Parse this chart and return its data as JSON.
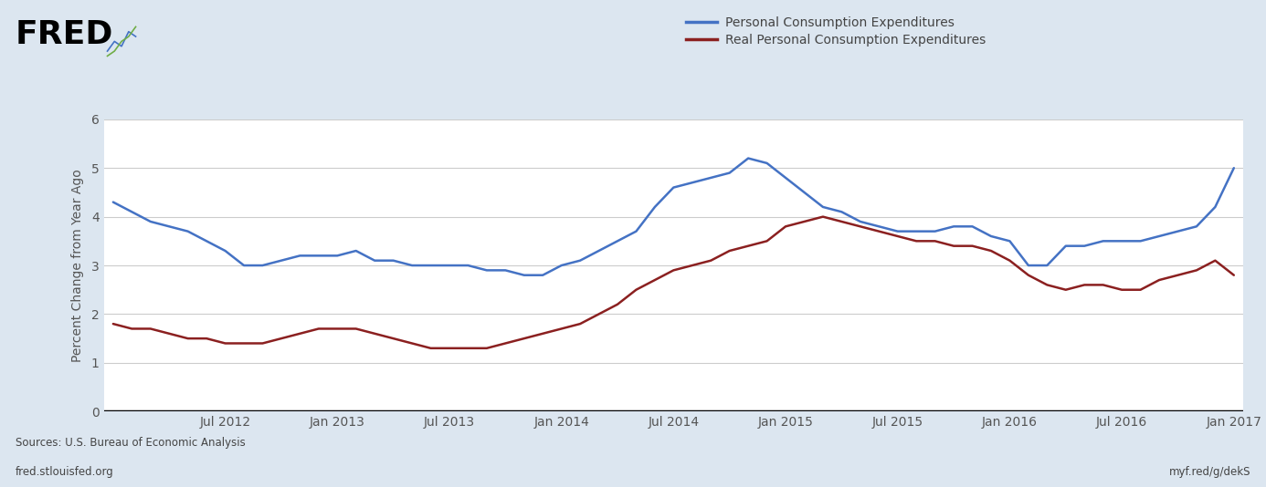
{
  "background_color": "#dce6f0",
  "plot_bg_color": "#ffffff",
  "blue_color": "#4472c4",
  "red_color": "#8b2020",
  "ylabel": "Percent Change from Year Ago",
  "legend1": "Personal Consumption Expenditures",
  "legend2": "Real Personal Consumption Expenditures",
  "source_text": "Sources: U.S. Bureau of Economic Analysis",
  "url_text": "fred.stlouisfed.org",
  "url_right": "myf.red/g/dekS",
  "ylim": [
    0,
    6
  ],
  "yticks": [
    0,
    1,
    2,
    3,
    4,
    5,
    6
  ],
  "pce": [
    4.3,
    4.1,
    3.9,
    3.8,
    3.7,
    3.5,
    3.3,
    3.0,
    3.0,
    3.1,
    3.2,
    3.2,
    3.2,
    3.3,
    3.1,
    3.1,
    3.0,
    3.0,
    3.0,
    3.0,
    2.9,
    2.9,
    2.8,
    2.8,
    3.0,
    3.1,
    3.3,
    3.5,
    3.7,
    4.2,
    4.6,
    4.7,
    4.8,
    4.9,
    5.2,
    5.1,
    4.8,
    4.5,
    4.2,
    4.1,
    3.9,
    3.8,
    3.7,
    3.7,
    3.7,
    3.8,
    3.8,
    3.6,
    3.5,
    3.0,
    3.0,
    3.4,
    3.4,
    3.5,
    3.5,
    3.5,
    3.6,
    3.7,
    3.8,
    4.2,
    5.0
  ],
  "real_pce": [
    1.8,
    1.7,
    1.7,
    1.6,
    1.5,
    1.5,
    1.4,
    1.4,
    1.4,
    1.5,
    1.6,
    1.7,
    1.7,
    1.7,
    1.6,
    1.5,
    1.4,
    1.3,
    1.3,
    1.3,
    1.3,
    1.4,
    1.5,
    1.6,
    1.7,
    1.8,
    2.0,
    2.2,
    2.5,
    2.7,
    2.9,
    3.0,
    3.1,
    3.3,
    3.4,
    3.5,
    3.8,
    3.9,
    4.0,
    3.9,
    3.8,
    3.7,
    3.6,
    3.5,
    3.5,
    3.4,
    3.4,
    3.3,
    3.1,
    2.8,
    2.6,
    2.5,
    2.6,
    2.6,
    2.5,
    2.5,
    2.7,
    2.8,
    2.9,
    3.1,
    2.8
  ],
  "xtick_positions": [
    6,
    12,
    18,
    24,
    30,
    36,
    42,
    48,
    54,
    60
  ],
  "xtick_labels": [
    "Jul 2012",
    "Jan 2013",
    "Jul 2013",
    "Jan 2014",
    "Jul 2014",
    "Jan 2015",
    "Jul 2015",
    "Jan 2016",
    "Jul 2016",
    "Jan 2017"
  ]
}
